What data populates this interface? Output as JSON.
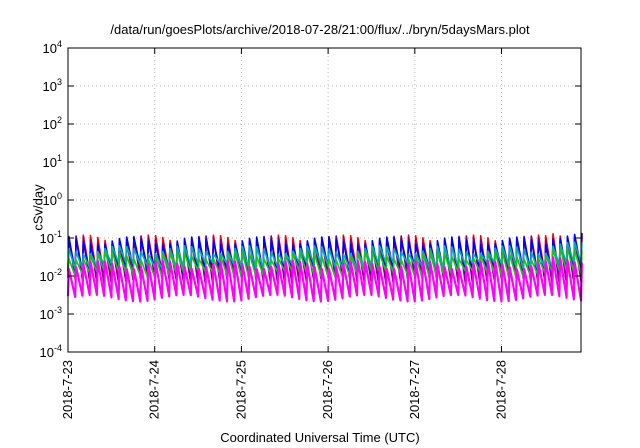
{
  "chart_data": {
    "type": "line",
    "title": "/data/run/goesPlots/archive/2018-07-28/21:00/flux/../bryn/5daysMars.plot",
    "xlabel": "Coordinated Universal Time (UTC)",
    "ylabel": "cSv/day",
    "xlim": [
      "2018-07-23T00:00",
      "2018-07-28T22:00"
    ],
    "ylim": [
      0.0001,
      10000
    ],
    "yscale": "log",
    "grid": true,
    "x_ticks": [
      "2018-7-23",
      "2018-7-24",
      "2018-7-25",
      "2018-7-26",
      "2018-7-27",
      "2018-7-28"
    ],
    "y_ticks": [
      {
        "base": "10",
        "exp": "-4"
      },
      {
        "base": "10",
        "exp": "-3"
      },
      {
        "base": "10",
        "exp": "-2"
      },
      {
        "base": "10",
        "exp": "-1"
      },
      {
        "base": "10",
        "exp": "0"
      },
      {
        "base": "10",
        "exp": "1"
      },
      {
        "base": "10",
        "exp": "2"
      },
      {
        "base": "10",
        "exp": "3"
      },
      {
        "base": "10",
        "exp": "4"
      }
    ],
    "pattern": "sawtooth",
    "period_hours": 2,
    "series": [
      {
        "color": "#ff0000",
        "peak": 0.095,
        "trough": 0.011
      },
      {
        "color": "#800080",
        "peak": 0.09,
        "trough": 0.008
      },
      {
        "color": "#0000ff",
        "peak": 0.085,
        "trough": 0.015
      },
      {
        "color": "#00b0b0",
        "peak": 0.05,
        "trough": 0.02
      },
      {
        "color": "#20c020",
        "peak": 0.035,
        "trough": 0.012
      },
      {
        "color": "#ff00ff",
        "peak": 0.02,
        "trough": 0.0028
      }
    ]
  }
}
